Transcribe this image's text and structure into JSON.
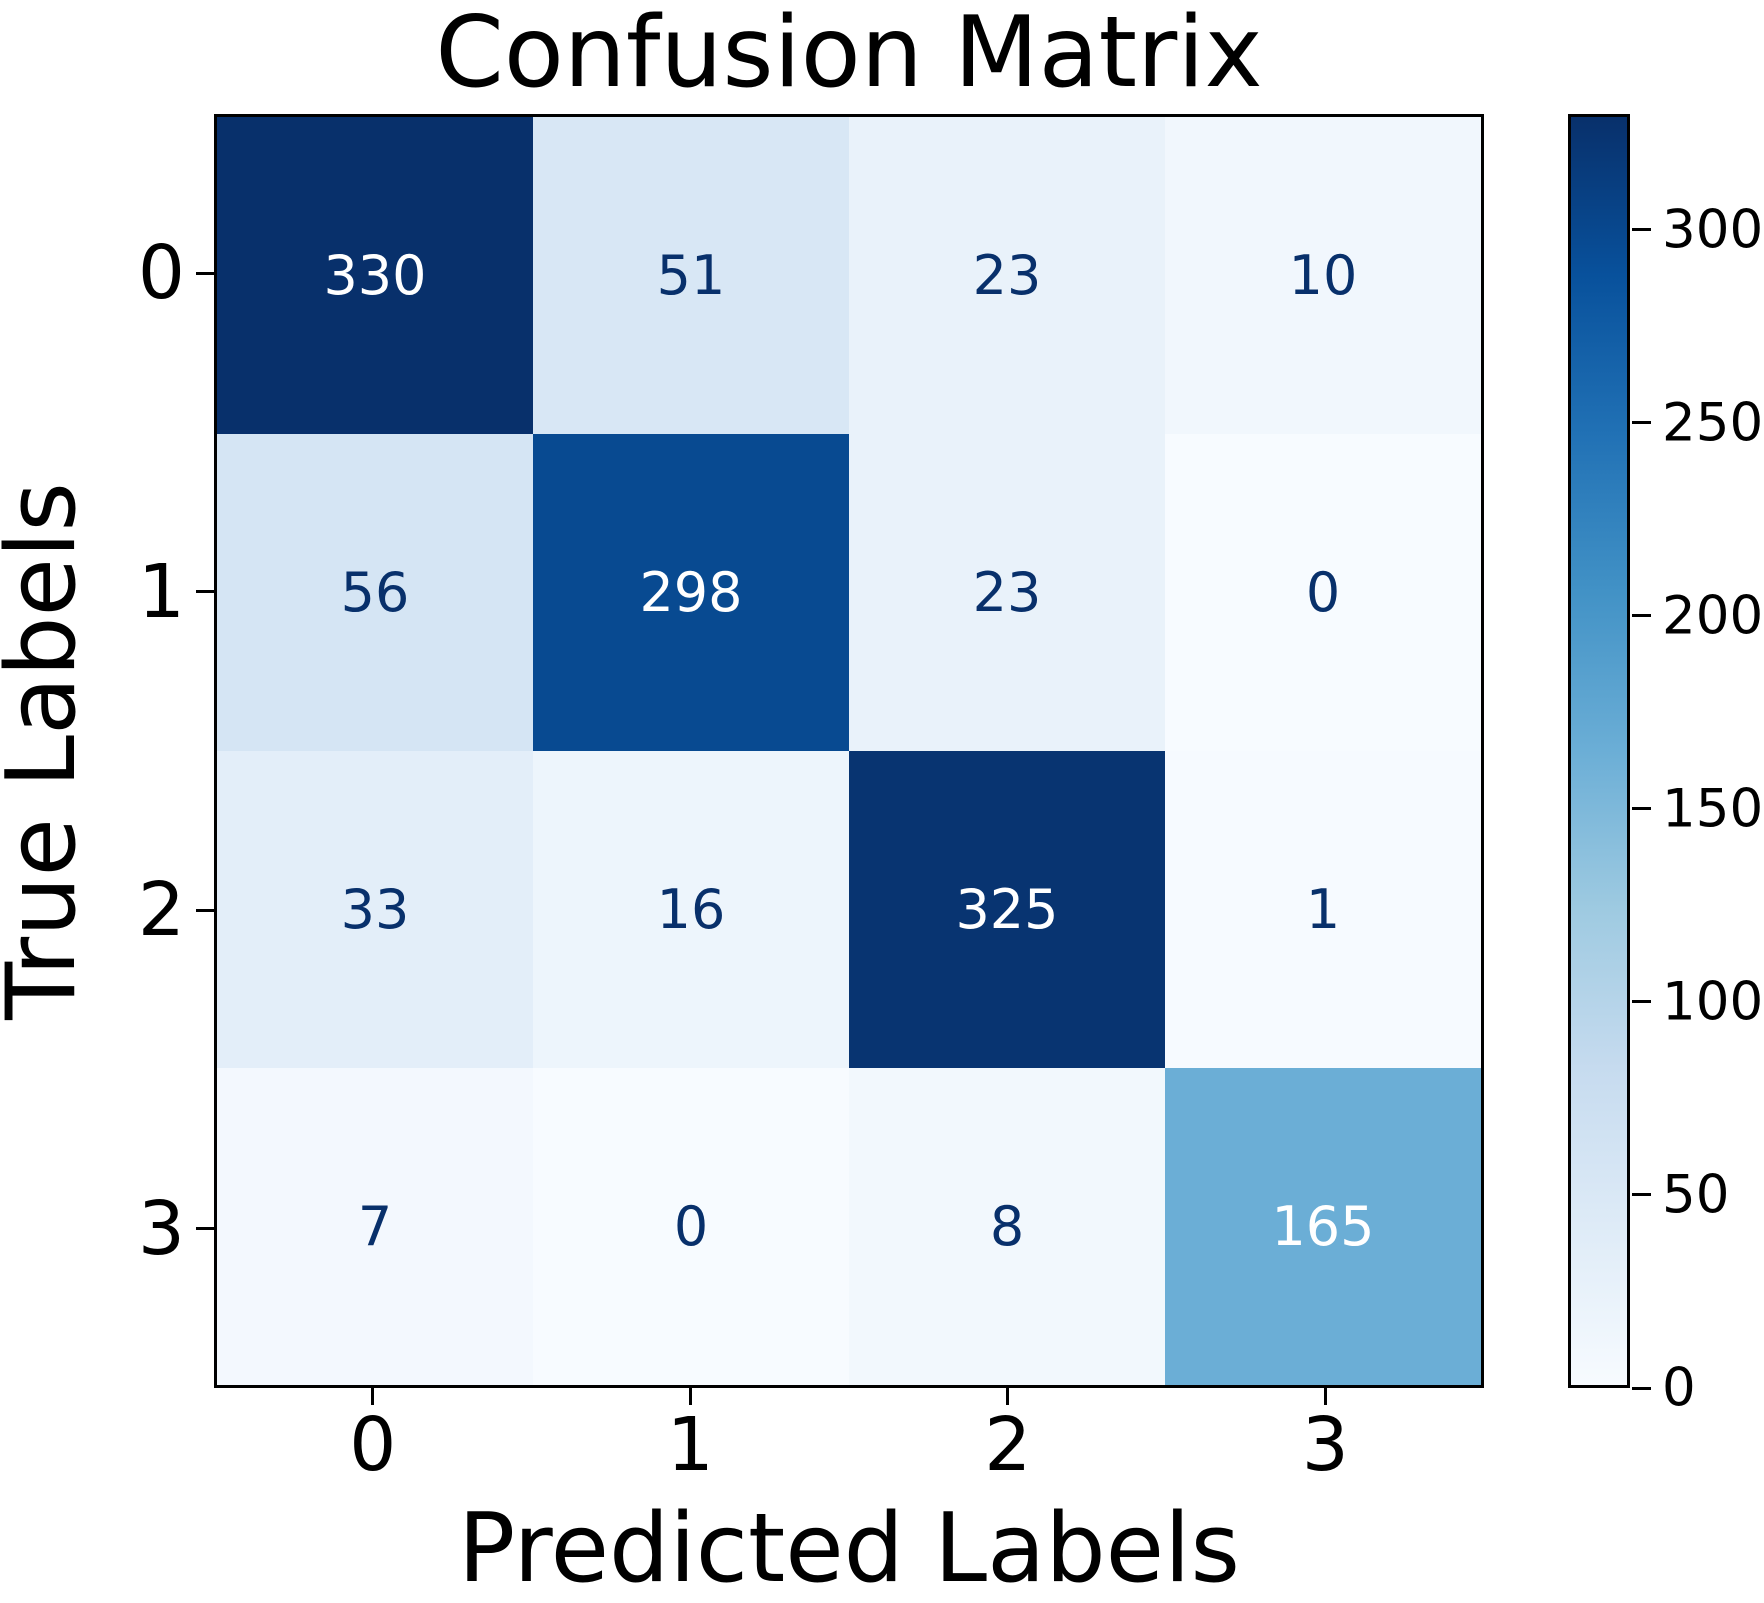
{
  "chart_data": {
    "type": "heatmap",
    "title": "Confusion Matrix",
    "xlabel": "Predicted Labels",
    "ylabel": "True Labels",
    "x_tick_labels": [
      "0",
      "1",
      "2",
      "3"
    ],
    "y_tick_labels": [
      "0",
      "1",
      "2",
      "3"
    ],
    "matrix": [
      [
        330,
        51,
        23,
        10
      ],
      [
        56,
        298,
        23,
        0
      ],
      [
        33,
        16,
        325,
        1
      ],
      [
        7,
        0,
        8,
        165
      ]
    ],
    "vmin": 0,
    "vmax": 330,
    "colormap": "Blues",
    "colormap_stops": [
      "#f7fbff",
      "#deebf7",
      "#c6dbef",
      "#9ecae1",
      "#6baed6",
      "#4292c6",
      "#2171b5",
      "#08519c",
      "#08306b"
    ],
    "cell_colors": [
      [
        "#08306b",
        "#d8e7f5",
        "#e9f2fa",
        "#f1f7fd"
      ],
      [
        "#d5e5f4",
        "#084a91",
        "#e9f2fa",
        "#f7fbff"
      ],
      [
        "#e3eef9",
        "#edf5fc",
        "#083471",
        "#f6faff"
      ],
      [
        "#f3f8fe",
        "#f7fbff",
        "#f2f8fd",
        "#6baed6"
      ]
    ],
    "cell_text_colors": [
      [
        "#ffffff",
        "#08306b",
        "#08306b",
        "#08306b"
      ],
      [
        "#08306b",
        "#ffffff",
        "#08306b",
        "#08306b"
      ],
      [
        "#08306b",
        "#08306b",
        "#ffffff",
        "#08306b"
      ],
      [
        "#08306b",
        "#08306b",
        "#08306b",
        "#ffffff"
      ]
    ],
    "colorbar_ticks": [
      0,
      50,
      100,
      150,
      200,
      250,
      300
    ],
    "grid": false,
    "legend": "colorbar-right"
  }
}
